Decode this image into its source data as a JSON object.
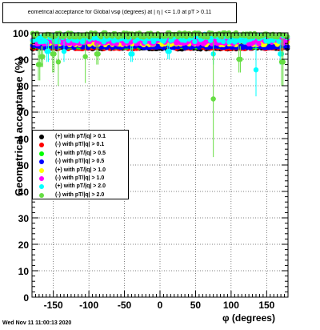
{
  "chart_data": {
    "type": "scatter",
    "title": "eometrical acceptance for Global vsφ (degrees) at | η | <= 1.0 at pT > 0.11",
    "xlabel": "φ (degrees)",
    "ylabel": "Geometrical acceptance (%)",
    "xlim": [
      -180,
      180
    ],
    "ylim": [
      0,
      100
    ],
    "x_ticks": [
      -150,
      -100,
      -50,
      0,
      50,
      100,
      150
    ],
    "y_ticks": [
      0,
      10,
      20,
      30,
      40,
      50,
      60,
      70,
      80,
      90,
      100
    ],
    "grid": true,
    "legend_position": "left-middle",
    "series": [
      {
        "name": "(+) with pT/|q| > 0.1",
        "color": "#000000",
        "base": 94.5,
        "spread": 0.6,
        "outliers": []
      },
      {
        "name": "(-) with pT/|q| > 0.1",
        "color": "#ff0000",
        "base": 94.6,
        "spread": 0.6,
        "outliers": []
      },
      {
        "name": "(+) with pT/|q| > 0.5",
        "color": "#00ff00",
        "base": 95.2,
        "spread": 0.6,
        "outliers": []
      },
      {
        "name": "(-) with pT/|q| > 0.5",
        "color": "#0000ff",
        "base": 95.0,
        "spread": 0.6,
        "outliers": []
      },
      {
        "name": "(+) with pT/|q| > 1.0",
        "color": "#ffff00",
        "base": 96.5,
        "spread": 1.0,
        "outliers": []
      },
      {
        "name": "(-) with pT/|q| > 1.0",
        "color": "#ff00ff",
        "base": 96.8,
        "spread": 1.0,
        "outliers": []
      },
      {
        "name": "(+) with pT/|q| > 2.0",
        "color": "#00ffff",
        "base": 98.0,
        "spread": 1.5,
        "outliers": [
          [
            -158,
            93,
            4
          ],
          [
            -135,
            93,
            4
          ],
          [
            -40,
            92,
            3
          ],
          [
            12,
            93,
            3
          ],
          [
            75,
            92,
            4
          ],
          [
            135,
            86,
            10
          ],
          [
            170,
            92,
            4
          ]
        ]
      },
      {
        "name": "(-) with pT/|q| > 2.0",
        "color": "#66dd44",
        "base": 99.2,
        "spread": 0.8,
        "outliers": [
          [
            -170,
            88,
            6
          ],
          [
            -166,
            91,
            4
          ],
          [
            -150,
            92,
            7
          ],
          [
            -143,
            89,
            9
          ],
          [
            -105,
            91,
            10
          ],
          [
            -88,
            92,
            4
          ],
          [
            75,
            75,
            22
          ],
          [
            112,
            90,
            5
          ],
          [
            172,
            89,
            9
          ]
        ]
      }
    ]
  },
  "footer": {
    "date": "Wed Nov 11 11:00:13 2020"
  }
}
